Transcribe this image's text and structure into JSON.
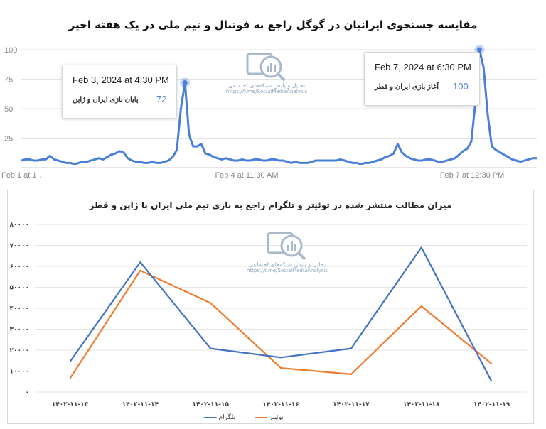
{
  "title": "مقایسه جستجوی ایرانیان در گوگل راجع به فوتبال و تیم ملی در یک هفته اخیر",
  "watermark": {
    "line1": "تحلیل و پایش شبکه‌های اجتماعی",
    "line2": "https://t.me/SocialMediaAnalysis",
    "color": "#8fa3bf"
  },
  "tooltips": [
    {
      "date": "Feb 3, 2024 at 4:30 PM",
      "label": "پایان بازی ایران و ژاپن",
      "value": "72"
    },
    {
      "date": "Feb 7, 2024 at 6:30 PM",
      "label": "آغاز بازی ایران و قطر",
      "value": "100"
    }
  ],
  "chart_data": [
    {
      "type": "line",
      "title": "مقایسه جستجوی ایرانیان در گوگل راجع به فوتبال و تیم ملی در یک هفته اخیر",
      "x_tick_labels": [
        "Feb 1 at 1…",
        "Feb 4 at 11:30 AM",
        "Feb 7 at 12:30 PM"
      ],
      "y_ticks": [
        "100",
        "75",
        "50",
        "25"
      ],
      "ylim": [
        0,
        100
      ],
      "grid": true,
      "color": "#4a7fd9",
      "values": [
        6,
        7,
        7,
        6,
        6,
        7,
        7,
        10,
        7,
        6,
        5,
        4,
        4,
        3,
        4,
        5,
        5,
        6,
        7,
        8,
        7,
        9,
        11,
        12,
        14,
        13,
        8,
        6,
        5,
        5,
        4,
        4,
        5,
        4,
        4,
        5,
        6,
        9,
        15,
        50,
        72,
        28,
        18,
        18,
        20,
        12,
        11,
        9,
        8,
        7,
        8,
        7,
        6,
        6,
        7,
        6,
        6,
        7,
        7,
        6,
        6,
        7,
        7,
        6,
        6,
        5,
        4,
        5,
        4,
        4,
        4,
        5,
        6,
        6,
        6,
        6,
        6,
        6,
        7,
        6,
        5,
        4,
        4,
        3,
        4,
        4,
        5,
        6,
        7,
        9,
        10,
        12,
        20,
        13,
        10,
        8,
        7,
        6,
        6,
        7,
        7,
        6,
        5,
        5,
        6,
        7,
        8,
        11,
        14,
        16,
        22,
        55,
        100,
        85,
        45,
        18,
        15,
        13,
        11,
        9,
        7,
        6,
        5,
        6,
        7,
        8,
        8
      ]
    },
    {
      "type": "line",
      "title": "میزان مطالب منتشر شده در توئیتر و تلگرام راجع به بازی تیم ملی ایران با ژاپن و قطر",
      "categories": [
        "۱۴۰۲-۱۱-۱۳",
        "۱۴۰۲-۱۱-۱۴",
        "۱۴۰۲-۱۱-۱۵",
        "۱۴۰۲-۱۱-۱۶",
        "۱۴۰۲-۱۱-۱۷",
        "۱۴۰۲-۱۱-۱۸",
        "۱۴۰۲-۱۱-۱۹"
      ],
      "y_tick_labels": [
        "۸۰۰۰۰",
        "۷۰۰۰۰",
        "۶۰۰۰۰",
        "۵۰۰۰۰",
        "۴۰۰۰۰",
        "۳۰۰۰۰",
        "۲۰۰۰۰",
        "۱۰۰۰۰",
        "۰"
      ],
      "ylim": [
        0,
        80000
      ],
      "grid": true,
      "legend_position": "bottom",
      "series": [
        {
          "name": "تلگرام",
          "color": "#4472c4",
          "values": [
            14500,
            62000,
            20800,
            16500,
            20800,
            69000,
            5000
          ]
        },
        {
          "name": "توئیتر",
          "color": "#ed7d31",
          "values": [
            6500,
            58000,
            42500,
            11500,
            8500,
            41000,
            13500
          ]
        }
      ]
    }
  ]
}
